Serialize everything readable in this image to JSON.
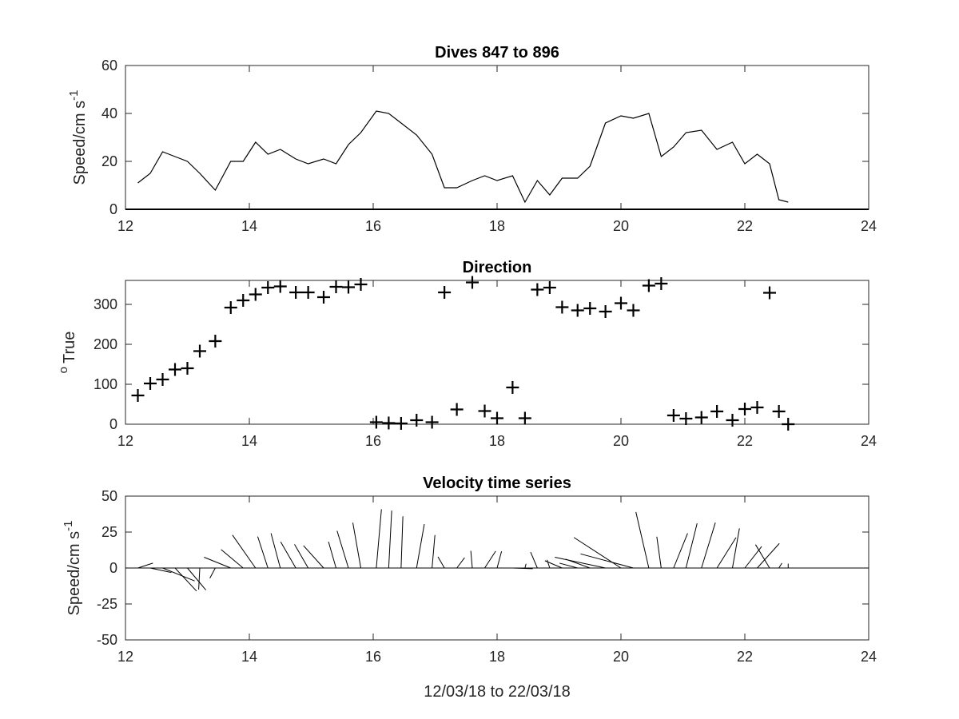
{
  "chart_data": [
    {
      "type": "line",
      "title": "Dives 847 to 896",
      "ylabel": "Speed/cm s",
      "ylabel_superscript": "-1",
      "xlim": [
        12,
        24
      ],
      "ylim": [
        0,
        60
      ],
      "xticks": [
        "12",
        "14",
        "16",
        "18",
        "20",
        "22",
        "24"
      ],
      "yticks": [
        "0",
        "20",
        "40",
        "60"
      ],
      "grid": false,
      "series": [
        {
          "x": [
            12.2,
            12.4,
            12.6,
            12.8,
            13.0,
            13.2,
            13.45,
            13.7,
            13.9,
            14.1,
            14.3,
            14.5,
            14.75,
            14.95,
            15.2,
            15.4,
            15.6,
            15.8,
            16.05,
            16.25,
            16.45,
            16.7,
            16.95,
            17.15,
            17.35,
            17.6,
            17.8,
            18.0,
            18.25,
            18.45,
            18.65,
            18.85,
            19.05,
            19.3,
            19.5,
            19.75,
            20.0,
            20.2,
            20.45,
            20.65,
            20.85,
            21.05,
            21.3,
            21.55,
            21.8,
            22.0,
            22.2,
            22.4,
            22.55,
            22.7
          ],
          "y": [
            11,
            15,
            24,
            22,
            20,
            15,
            8,
            20,
            20,
            28,
            23,
            25,
            21,
            19,
            21,
            19,
            27,
            32,
            41,
            40,
            36,
            31,
            23,
            9,
            9,
            12,
            14,
            12,
            14,
            3,
            12,
            6,
            13,
            13,
            18,
            36,
            39,
            38,
            40,
            22,
            26,
            32,
            33,
            25,
            28,
            19,
            23,
            19,
            4,
            3
          ]
        }
      ]
    },
    {
      "type": "scatter",
      "title": "Direction",
      "ylabel": "True",
      "ylabel_superscript": "o",
      "xlim": [
        12,
        24
      ],
      "ylim": [
        0,
        360
      ],
      "xticks": [
        "12",
        "14",
        "16",
        "18",
        "20",
        "22",
        "24"
      ],
      "yticks": [
        "0",
        "100",
        "200",
        "300"
      ],
      "grid": false,
      "marker": "+",
      "series": [
        {
          "x": [
            12.2,
            12.4,
            12.6,
            12.8,
            13.0,
            13.2,
            13.45,
            13.7,
            13.9,
            14.1,
            14.3,
            14.5,
            14.75,
            14.95,
            15.2,
            15.4,
            15.6,
            15.8,
            16.05,
            16.25,
            16.45,
            16.7,
            16.95,
            17.15,
            17.35,
            17.6,
            17.8,
            18.0,
            18.25,
            18.45,
            18.65,
            18.85,
            19.05,
            19.3,
            19.5,
            19.75,
            20.0,
            20.2,
            20.45,
            20.65,
            20.85,
            21.05,
            21.3,
            21.55,
            21.8,
            22.0,
            22.2,
            22.4,
            22.55,
            22.7
          ],
          "y": [
            72,
            102,
            112,
            137,
            140,
            183,
            208,
            292,
            310,
            325,
            342,
            345,
            330,
            330,
            318,
            344,
            343,
            350,
            5,
            3,
            2,
            10,
            5,
            330,
            37,
            355,
            33,
            15,
            92,
            15,
            337,
            342,
            293,
            285,
            290,
            282,
            303,
            285,
            347,
            352,
            22,
            14,
            17,
            32,
            10,
            38,
            42,
            329,
            32,
            0
          ]
        }
      ]
    },
    {
      "type": "line",
      "subtype": "stick-plot",
      "title": "Velocity time series",
      "ylabel": "Speed/cm s",
      "ylabel_superscript": "-1",
      "xlabel": "12/03/18 to 22/03/18",
      "xlim": [
        12,
        24
      ],
      "ylim": [
        -50,
        50
      ],
      "xticks": [
        "12",
        "14",
        "16",
        "18",
        "20",
        "22",
        "24"
      ],
      "yticks": [
        "-50",
        "-25",
        "0",
        "25",
        "50"
      ],
      "grid": false
    }
  ]
}
